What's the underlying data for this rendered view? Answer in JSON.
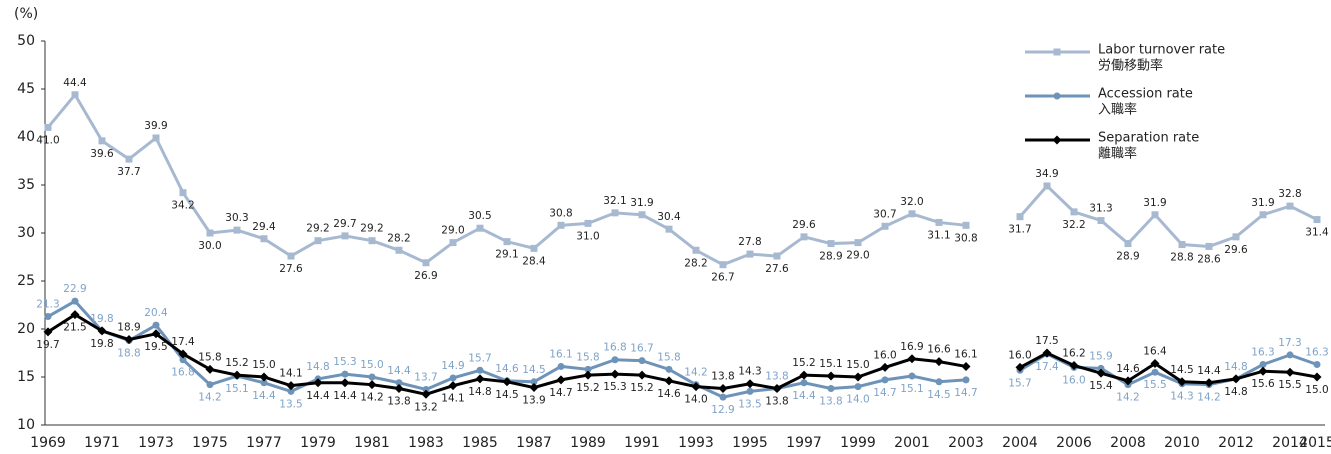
{
  "chart_data": {
    "type": "line",
    "y_unit": "(%)",
    "ylim": [
      10,
      50
    ],
    "yticks": [
      10,
      15,
      20,
      25,
      30,
      35,
      40,
      45,
      50
    ],
    "categories": [
      "1969",
      null,
      "1971",
      null,
      "1973",
      null,
      "1975",
      null,
      "1977",
      null,
      "1979",
      null,
      "1981",
      null,
      "1983",
      null,
      "1985",
      null,
      "1987",
      null,
      "1989",
      null,
      "1991",
      null,
      "1993",
      null,
      "1995",
      null,
      "1997",
      null,
      "1999",
      null,
      "2001",
      null,
      "2003",
      null,
      "2004",
      null,
      "2006",
      null,
      "2008",
      null,
      "2010",
      null,
      "2012",
      null,
      "2014",
      "2015"
    ],
    "series": [
      {
        "name": "Labor turnover rate",
        "name_local": "労働移動率",
        "color": "#a7b9d1",
        "marker": "square",
        "values": [
          41.0,
          44.4,
          39.6,
          37.7,
          39.9,
          34.2,
          30.0,
          30.3,
          29.4,
          27.6,
          29.2,
          29.7,
          29.2,
          28.2,
          26.9,
          29.0,
          30.5,
          29.1,
          28.4,
          30.8,
          31.0,
          32.1,
          31.9,
          30.4,
          28.2,
          26.7,
          27.8,
          27.6,
          29.6,
          28.9,
          29.0,
          30.7,
          32.0,
          31.1,
          30.8,
          null,
          31.7,
          34.9,
          32.2,
          31.3,
          28.9,
          31.9,
          28.8,
          28.6,
          29.6,
          31.9,
          32.8,
          31.4
        ],
        "value_labels": [
          "41.0",
          "44.4",
          "39.6",
          "37.7",
          "39.9",
          "34.2",
          "30.0",
          "30.3",
          "29.4",
          "27.6",
          "29.2",
          "29.7",
          "29.2",
          "28.2",
          "26.9",
          "29.0",
          "30.5",
          "29.1",
          "28.4",
          "30.8",
          "31.0",
          "32.1",
          "31.9",
          "30.4",
          "28.2",
          "26.7",
          "27.8",
          "27.6",
          "29.6",
          "28.9",
          "29.0",
          "30.7",
          "32.0",
          "31.1",
          "30.8",
          null,
          "31.7",
          "34.9",
          "32.2",
          "31.3",
          "28.9",
          "31.9",
          "28.8",
          "28.6",
          "29.6",
          "31.9",
          "32.8",
          "31.4"
        ]
      },
      {
        "name": "Accession rate",
        "name_local": "入職率",
        "color": "#6e93b9",
        "marker": "circle",
        "values": [
          21.3,
          22.9,
          19.8,
          18.8,
          20.4,
          16.8,
          14.2,
          15.1,
          14.4,
          13.5,
          14.8,
          15.3,
          15.0,
          14.4,
          13.7,
          14.9,
          15.7,
          14.6,
          14.5,
          16.1,
          15.8,
          16.8,
          16.7,
          15.8,
          14.2,
          12.9,
          13.5,
          13.8,
          14.4,
          13.8,
          14.0,
          14.7,
          15.1,
          14.5,
          14.7,
          null,
          15.7,
          17.4,
          16.0,
          15.9,
          14.2,
          15.5,
          14.3,
          14.2,
          14.8,
          16.3,
          17.3,
          16.3
        ],
        "value_labels": [
          "21.3",
          "22.9",
          "19.8",
          "18.8",
          "20.4",
          "16.8",
          "14.2",
          "15.1",
          "14.4",
          "13.5",
          "14.8",
          "15.3",
          "15.0",
          "14.4",
          "13.7",
          "14.9",
          "15.7",
          "14.6",
          "14.5",
          "16.1",
          "15.8",
          "16.8",
          "16.7",
          "15.8",
          "14.2",
          "12.9",
          "13.5",
          "13.8",
          "14.4",
          "13.8",
          "14.0",
          "14.7",
          "15.1",
          "14.5",
          "14.7",
          null,
          "15.7",
          "17.4",
          "16.0",
          "15.9",
          "14.2",
          "15.5",
          "14.3",
          "14.2",
          "14.8",
          "16.3",
          "17.3",
          "16.3"
        ]
      },
      {
        "name": "Separation rate",
        "name_local": "離職率",
        "color": "#000000",
        "marker": "diamond",
        "values": [
          19.7,
          21.5,
          19.8,
          18.9,
          19.5,
          17.4,
          15.8,
          15.2,
          15.0,
          14.1,
          14.4,
          14.4,
          14.2,
          13.8,
          13.2,
          14.1,
          14.8,
          14.5,
          13.9,
          14.7,
          15.2,
          15.3,
          15.2,
          14.6,
          14.0,
          13.8,
          14.3,
          13.8,
          15.2,
          15.1,
          15.0,
          16.0,
          16.9,
          16.6,
          16.1,
          null,
          16.0,
          17.5,
          16.2,
          15.4,
          14.6,
          16.4,
          14.5,
          14.4,
          14.8,
          15.6,
          15.5,
          15.0
        ],
        "value_labels": [
          "19.7",
          "21.5",
          "19.8",
          "18.9",
          "19.5",
          "17.4",
          "15.8",
          "15.2",
          "15.0",
          "14.1",
          "14.4",
          "14.4",
          "14.2",
          "13.8",
          "13.2",
          "14.1",
          "14.8",
          "14.5",
          "13.9",
          "14.7",
          "15.2",
          "15.3",
          "15.2",
          "14.6",
          "14.0",
          "13.8",
          "14.3",
          "13.8",
          "15.2",
          "15.1",
          "15.0",
          "16.0",
          "16.9",
          "16.6",
          "16.1",
          null,
          "16.0",
          "17.5",
          "16.2",
          "15.4",
          "14.6",
          "16.4",
          "14.5",
          "14.4",
          "14.8",
          "15.6",
          "15.5",
          "15.0"
        ]
      }
    ]
  }
}
